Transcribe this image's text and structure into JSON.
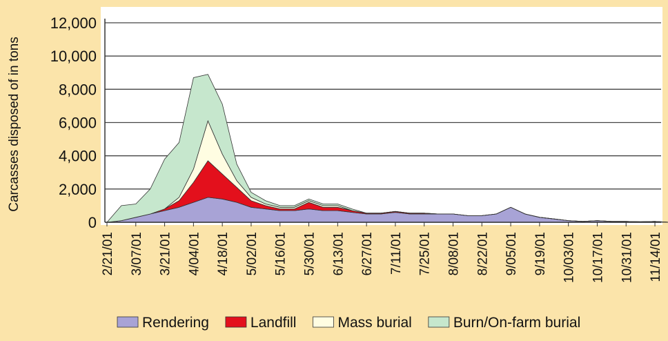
{
  "chart_data": {
    "type": "stacked_area",
    "y_label": "Carcasses disposed of in tons",
    "x": [
      "2/21/01",
      "2/28/01",
      "3/07/01",
      "3/14/01",
      "3/21/01",
      "3/28/01",
      "4/04/01",
      "4/11/01",
      "4/18/01",
      "4/25/01",
      "5/02/01",
      "5/09/01",
      "5/16/01",
      "5/23/01",
      "5/30/01",
      "6/06/01",
      "6/13/01",
      "6/20/01",
      "6/27/01",
      "7/04/01",
      "7/11/01",
      "7/18/01",
      "7/25/01",
      "8/01/01",
      "8/08/01",
      "8/15/01",
      "8/22/01",
      "8/29/01",
      "9/05/01",
      "9/12/01",
      "9/19/01",
      "9/26/01",
      "10/03/01",
      "10/10/01",
      "10/17/01",
      "10/24/01",
      "10/31/01",
      "11/07/01",
      "11/14/01",
      "11/21/01"
    ],
    "series": [
      {
        "name": "Rendering",
        "color": "#a8a3d6",
        "values": [
          0,
          100,
          300,
          500,
          700,
          900,
          1200,
          1500,
          1400,
          1200,
          900,
          800,
          700,
          700,
          800,
          700,
          700,
          600,
          500,
          500,
          600,
          500,
          500,
          500,
          500,
          400,
          400,
          500,
          900,
          500,
          300,
          200,
          100,
          50,
          100,
          50,
          50,
          30,
          50,
          0
        ]
      },
      {
        "name": "Landfill",
        "color": "#e3101c",
        "values": [
          0,
          0,
          0,
          0,
          100,
          400,
          1200,
          2200,
          1500,
          900,
          400,
          200,
          100,
          100,
          400,
          200,
          200,
          100,
          50,
          50,
          50,
          50,
          50,
          0,
          0,
          0,
          0,
          0,
          0,
          0,
          0,
          0,
          0,
          0,
          0,
          0,
          0,
          0,
          0,
          0
        ]
      },
      {
        "name": "Mass burial",
        "color": "#fffde2",
        "values": [
          0,
          0,
          0,
          0,
          0,
          200,
          800,
          2400,
          1200,
          400,
          200,
          100,
          100,
          100,
          100,
          100,
          100,
          0,
          0,
          0,
          0,
          0,
          0,
          0,
          0,
          0,
          0,
          0,
          0,
          0,
          0,
          0,
          0,
          0,
          0,
          0,
          0,
          0,
          0,
          0
        ]
      },
      {
        "name": "Burn/On-farm burial",
        "color": "#c6e7cd",
        "values": [
          0,
          900,
          800,
          1500,
          3000,
          3300,
          5500,
          2800,
          3000,
          1000,
          300,
          200,
          100,
          100,
          100,
          100,
          100,
          100,
          0,
          0,
          0,
          0,
          0,
          0,
          0,
          0,
          0,
          0,
          0,
          0,
          0,
          0,
          0,
          0,
          0,
          0,
          0,
          0,
          0,
          0
        ]
      }
    ],
    "xlim": [
      "2/20/01",
      "11/17/01"
    ],
    "xticks": [
      "2/21/01",
      "3/07/01",
      "3/21/01",
      "4/04/01",
      "4/18/01",
      "5/02/01",
      "5/16/01",
      "5/30/01",
      "6/13/01",
      "6/27/01",
      "7/11/01",
      "7/25/01",
      "8/08/01",
      "8/22/01",
      "9/05/01",
      "9/19/01",
      "10/03/01",
      "10/17/01",
      "10/31/01",
      "11/14/01"
    ],
    "ylim": [
      0,
      12000
    ],
    "yticks": [
      0,
      {
        "value": 2000,
        "label": "2,000"
      },
      {
        "value": 4000,
        "label": "4,000"
      },
      {
        "value": 6000,
        "label": "6,000"
      },
      {
        "value": 8000,
        "label": "8,000"
      },
      {
        "value": 10000,
        "label": "10,000"
      },
      {
        "value": 12000,
        "label": "12,000"
      }
    ],
    "grid": true,
    "legend": "bottom"
  }
}
